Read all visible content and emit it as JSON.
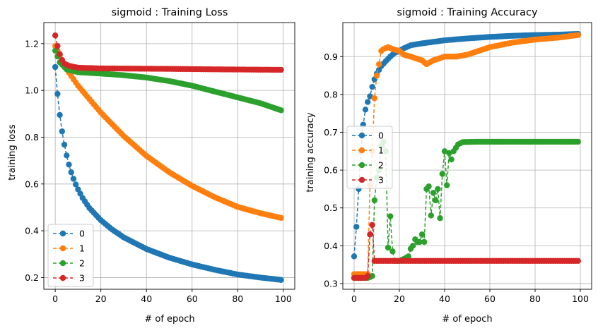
{
  "chart_data": [
    {
      "type": "line",
      "title": "sigmoid : Training Loss",
      "xlabel": "# of epoch",
      "ylabel": "training loss",
      "xlim": [
        -5,
        105
      ],
      "ylim": [
        0.15,
        1.29
      ],
      "xticks": [
        0,
        20,
        40,
        60,
        80,
        100
      ],
      "yticks": [
        0.2,
        0.4,
        0.6,
        0.8,
        1.0,
        1.2
      ],
      "ytick_labels": [
        "0.2",
        "0.4",
        "0.6",
        "0.8",
        "1.0",
        "1.2"
      ],
      "grid": true,
      "legend_position": "lower-left",
      "x": "epochs 0-99",
      "series": [
        {
          "name": "0",
          "color": "#1f77b4",
          "anchors": [
            [
              0,
              1.1
            ],
            [
              1,
              0.985
            ],
            [
              2,
              0.895
            ],
            [
              3,
              0.825
            ],
            [
              4,
              0.768
            ],
            [
              5,
              0.722
            ],
            [
              6,
              0.683
            ],
            [
              7,
              0.65
            ],
            [
              8,
              0.622
            ],
            [
              9,
              0.598
            ],
            [
              10,
              0.577
            ],
            [
              12,
              0.54
            ],
            [
              15,
              0.497
            ],
            [
              20,
              0.445
            ],
            [
              25,
              0.405
            ],
            [
              30,
              0.372
            ],
            [
              40,
              0.322
            ],
            [
              50,
              0.285
            ],
            [
              60,
              0.256
            ],
            [
              70,
              0.233
            ],
            [
              80,
              0.213
            ],
            [
              90,
              0.2
            ],
            [
              99,
              0.19
            ]
          ]
        },
        {
          "name": "1",
          "color": "#ff7f0e",
          "anchors": [
            [
              0,
              1.19
            ],
            [
              1,
              1.17
            ],
            [
              3,
              1.13
            ],
            [
              5,
              1.09
            ],
            [
              10,
              1.02
            ],
            [
              20,
              0.905
            ],
            [
              30,
              0.805
            ],
            [
              40,
              0.72
            ],
            [
              50,
              0.65
            ],
            [
              60,
              0.592
            ],
            [
              70,
              0.543
            ],
            [
              80,
              0.502
            ],
            [
              90,
              0.475
            ],
            [
              99,
              0.455
            ]
          ]
        },
        {
          "name": "2",
          "color": "#2ca02c",
          "anchors": [
            [
              0,
              1.17
            ],
            [
              2,
              1.12
            ],
            [
              5,
              1.09
            ],
            [
              10,
              1.078
            ],
            [
              20,
              1.072
            ],
            [
              30,
              1.065
            ],
            [
              40,
              1.055
            ],
            [
              50,
              1.04
            ],
            [
              60,
              1.02
            ],
            [
              70,
              0.995
            ],
            [
              80,
              0.97
            ],
            [
              90,
              0.945
            ],
            [
              99,
              0.915
            ]
          ]
        },
        {
          "name": "3",
          "color": "#d62728",
          "anchors": [
            [
              0,
              1.235
            ],
            [
              1,
              1.19
            ],
            [
              2,
              1.155
            ],
            [
              3,
              1.13
            ],
            [
              4,
              1.115
            ],
            [
              6,
              1.105
            ],
            [
              10,
              1.097
            ],
            [
              20,
              1.094
            ],
            [
              50,
              1.092
            ],
            [
              70,
              1.09
            ],
            [
              99,
              1.088
            ]
          ]
        }
      ]
    },
    {
      "type": "line",
      "title": "sigmoid : Training  Accuracy",
      "xlabel": "# of epoch",
      "ylabel": "training accuracy",
      "xlim": [
        -5,
        105
      ],
      "ylim": [
        0.285,
        0.99
      ],
      "xticks": [
        0,
        20,
        40,
        60,
        80,
        100
      ],
      "yticks": [
        0.3,
        0.4,
        0.5,
        0.6,
        0.7,
        0.8,
        0.9
      ],
      "ytick_labels": [
        "0.3",
        "0.4",
        "0.5",
        "0.6",
        "0.7",
        "0.8",
        "0.9"
      ],
      "grid": true,
      "legend_position": "center-left",
      "x": "epochs 0-99",
      "series": [
        {
          "name": "0",
          "color": "#1f77b4",
          "anchors": [
            [
              0,
              0.372
            ],
            [
              1,
              0.45
            ],
            [
              2,
              0.55
            ],
            [
              3,
              0.65
            ],
            [
              4,
              0.72
            ],
            [
              5,
              0.76
            ],
            [
              6,
              0.78
            ],
            [
              7,
              0.795
            ],
            [
              8,
              0.82
            ],
            [
              9,
              0.84
            ],
            [
              10,
              0.855
            ],
            [
              12,
              0.875
            ],
            [
              14,
              0.888
            ],
            [
              16,
              0.9
            ],
            [
              18,
              0.91
            ],
            [
              20,
              0.915
            ],
            [
              22,
              0.922
            ],
            [
              25,
              0.93
            ],
            [
              30,
              0.935
            ],
            [
              40,
              0.943
            ],
            [
              50,
              0.948
            ],
            [
              60,
              0.952
            ],
            [
              70,
              0.955
            ],
            [
              80,
              0.957
            ],
            [
              90,
              0.958
            ],
            [
              99,
              0.96
            ]
          ]
        },
        {
          "name": "1",
          "color": "#ff7f0e",
          "anchors": [
            [
              0,
              0.325
            ],
            [
              1,
              0.325
            ],
            [
              2,
              0.325
            ],
            [
              3,
              0.325
            ],
            [
              4,
              0.325
            ],
            [
              5,
              0.325
            ],
            [
              6,
              0.325
            ],
            [
              7,
              0.56
            ],
            [
              8,
              0.65
            ],
            [
              9,
              0.79
            ],
            [
              10,
              0.85
            ],
            [
              11,
              0.88
            ],
            [
              12,
              0.915
            ],
            [
              13,
              0.92
            ],
            [
              15,
              0.925
            ],
            [
              17,
              0.92
            ],
            [
              20,
              0.915
            ],
            [
              22,
              0.905
            ],
            [
              25,
              0.9
            ],
            [
              30,
              0.89
            ],
            [
              32,
              0.88
            ],
            [
              35,
              0.89
            ],
            [
              40,
              0.9
            ],
            [
              45,
              0.9
            ],
            [
              50,
              0.905
            ],
            [
              55,
              0.915
            ],
            [
              60,
              0.925
            ],
            [
              70,
              0.937
            ],
            [
              80,
              0.945
            ],
            [
              90,
              0.95
            ],
            [
              99,
              0.957
            ]
          ]
        },
        {
          "name": "2",
          "color": "#2ca02c",
          "anchors": [
            [
              0,
              0.315
            ],
            [
              6,
              0.315
            ],
            [
              7,
              0.317
            ],
            [
              8,
              0.32
            ],
            [
              9,
              0.52
            ],
            [
              10,
              0.58
            ],
            [
              11,
              0.6
            ],
            [
              12,
              0.665
            ],
            [
              13,
              0.675
            ],
            [
              14,
              0.65
            ],
            [
              15,
              0.395
            ],
            [
              16,
              0.478
            ],
            [
              17,
              0.385
            ],
            [
              18,
              0.36
            ],
            [
              20,
              0.36
            ],
            [
              22,
              0.365
            ],
            [
              24,
              0.372
            ],
            [
              25,
              0.392
            ],
            [
              26,
              0.4
            ],
            [
              27,
              0.417
            ],
            [
              28,
              0.41
            ],
            [
              29,
              0.41
            ],
            [
              30,
              0.43
            ],
            [
              31,
              0.41
            ],
            [
              32,
              0.55
            ],
            [
              33,
              0.557
            ],
            [
              34,
              0.48
            ],
            [
              35,
              0.54
            ],
            [
              36,
              0.52
            ],
            [
              37,
              0.55
            ],
            [
              38,
              0.473
            ],
            [
              39,
              0.59
            ],
            [
              40,
              0.65
            ],
            [
              41,
              0.56
            ],
            [
              42,
              0.645
            ],
            [
              43,
              0.628
            ],
            [
              44,
              0.65
            ],
            [
              46,
              0.668
            ],
            [
              48,
              0.674
            ],
            [
              55,
              0.675
            ],
            [
              99,
              0.675
            ]
          ]
        },
        {
          "name": "3",
          "color": "#d62728",
          "anchors": [
            [
              0,
              0.315
            ],
            [
              4,
              0.315
            ],
            [
              5,
              0.315
            ],
            [
              6,
              0.32
            ],
            [
              7,
              0.43
            ],
            [
              8,
              0.455
            ],
            [
              9,
              0.36
            ],
            [
              99,
              0.36
            ]
          ]
        }
      ]
    }
  ]
}
